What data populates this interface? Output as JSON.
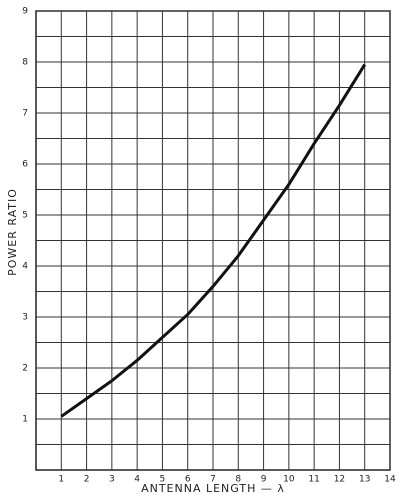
{
  "chart_data": {
    "type": "line",
    "x_label": "ANTENNA LENGTH — λ",
    "y_label": "POWER RATIO",
    "x": [
      1,
      2,
      3,
      4,
      5,
      6,
      7,
      8,
      9,
      10,
      11,
      12,
      13
    ],
    "values": [
      1.05,
      1.4,
      1.75,
      2.15,
      2.6,
      3.05,
      3.6,
      4.2,
      4.9,
      5.6,
      6.4,
      7.15,
      7.95
    ],
    "color": "#111111",
    "xlim": [
      0,
      14
    ],
    "ylim": [
      0,
      9
    ],
    "xticks": [
      1,
      2,
      3,
      4,
      5,
      6,
      7,
      8,
      9,
      10,
      11,
      12,
      13,
      14
    ],
    "yticks": [
      1,
      2,
      3,
      4,
      5,
      6,
      7,
      8,
      9
    ],
    "y_minor_ticks": [
      0.5,
      1.5,
      2.5,
      3.5,
      4.5,
      5.5,
      6.5,
      7.5,
      8.5
    ],
    "grid": true
  }
}
